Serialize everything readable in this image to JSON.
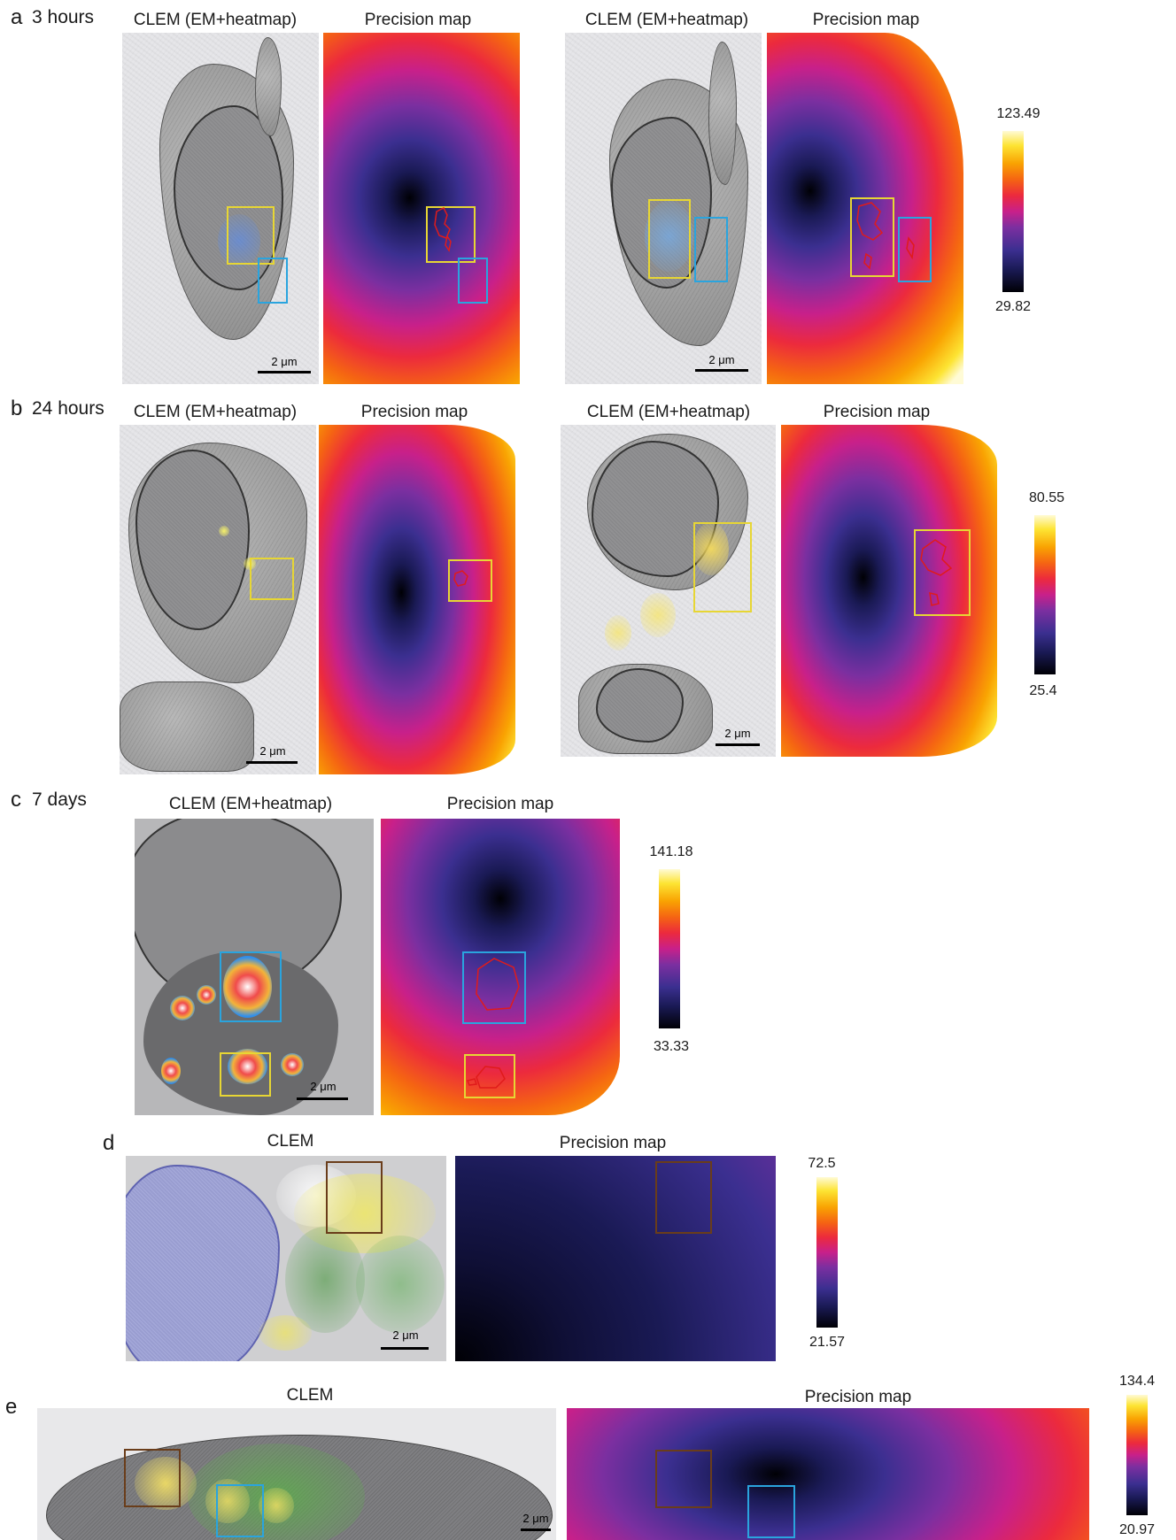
{
  "panels": {
    "a": {
      "letter": "a",
      "time": "3 hours",
      "clem_title_1": "CLEM (EM+heatmap)",
      "precision_title_1": "Precision map",
      "clem_title_2": "CLEM (EM+heatmap)",
      "precision_title_2": "Precision map",
      "scale_1": "2 μm",
      "scale_2": "2 μm",
      "colorbar_max": "123.49",
      "colorbar_min": "29.82"
    },
    "b": {
      "letter": "b",
      "time": "24 hours",
      "clem_title_1": "CLEM (EM+heatmap)",
      "precision_title_1": "Precision map",
      "clem_title_2": "CLEM (EM+heatmap)",
      "precision_title_2": "Precision map",
      "scale_1": "2 μm",
      "scale_2": "2 μm",
      "colorbar_max": "80.55",
      "colorbar_min": "25.4"
    },
    "c": {
      "letter": "c",
      "time": "7 days",
      "clem_title": "CLEM (EM+heatmap)",
      "precision_title": "Precision map",
      "scale": "2 μm",
      "colorbar_max": "141.18",
      "colorbar_min": "33.33"
    },
    "d": {
      "letter": "d",
      "clem_title": "CLEM",
      "precision_title": "Precision map",
      "scale": "2 μm",
      "colorbar_max": "72.5",
      "colorbar_min": "21.57"
    },
    "e": {
      "letter": "e",
      "clem_title": "CLEM",
      "precision_title": "Precision map",
      "scale": "2 μm",
      "colorbar_max": "134.4",
      "colorbar_min": "20.97"
    }
  },
  "colors": {
    "roi_yellow": "#e7d634",
    "roi_blue": "#2aa4de",
    "roi_brown": "#6a3d1a",
    "contour_red": "#e01b1b",
    "colormap": [
      "#000005",
      "#1a1a55",
      "#3b2f90",
      "#7b2fa0",
      "#c8208a",
      "#ec2a3d",
      "#f56512",
      "#f9a302",
      "#fde433",
      "#fffbd6"
    ]
  }
}
